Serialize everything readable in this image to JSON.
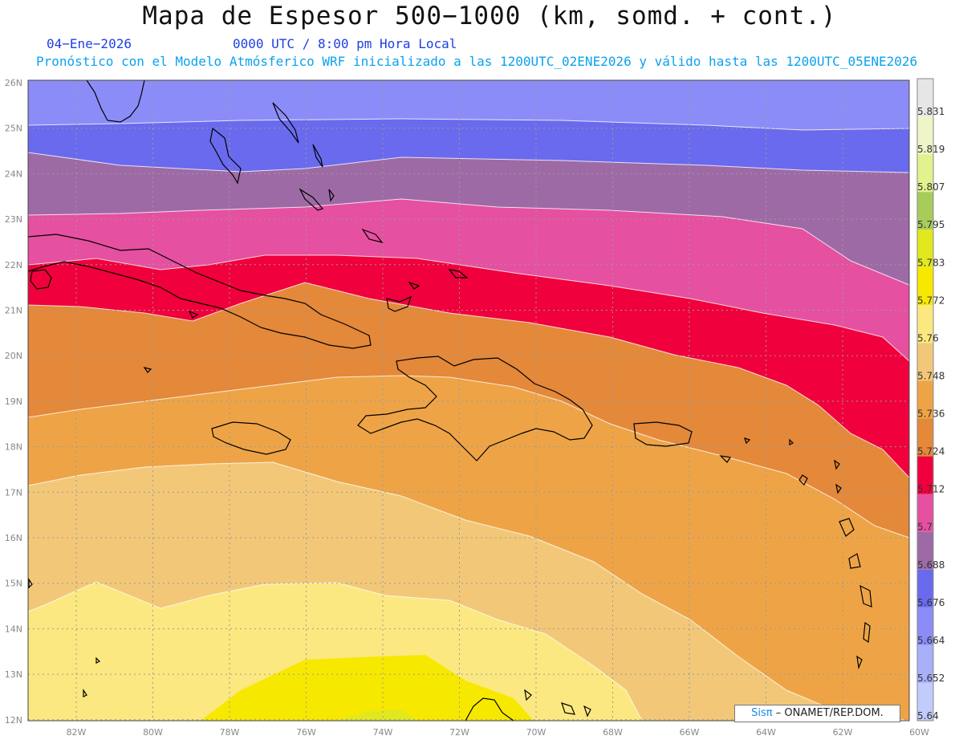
{
  "header": {
    "title": "Mapa de Espesor 500−1000 (km, somd. + cont.)",
    "date": "04−Ene−2026",
    "time": "0000 UTC / 8:00 pm Hora Local",
    "forecast": "Pronóstico con el Modelo Atmósferico WRF inicializado a las 1200UTC_02ENE2026 y válido hasta las  1200UTC_05ENE2026"
  },
  "map": {
    "lon_labels": [
      "82W",
      "80W",
      "78W",
      "76W",
      "74W",
      "72W",
      "70W",
      "68W",
      "66W",
      "64W",
      "62W",
      "60W"
    ],
    "lat_labels": [
      "26N",
      "25N",
      "24N",
      "23N",
      "22N",
      "21N",
      "20N",
      "19N",
      "18N",
      "17N",
      "16N",
      "15N",
      "14N",
      "13N",
      "12N"
    ]
  },
  "colorbar": {
    "labels": [
      "5.831",
      "5.819",
      "5.807",
      "5.795",
      "5.783",
      "5.772",
      "5.76",
      "5.748",
      "5.736",
      "5.724",
      "5.712",
      "5.7",
      "5.688",
      "5.676",
      "5.664",
      "5.652",
      "5.64"
    ],
    "colors": [
      "#e6e6e6",
      "#f0f5c8",
      "#e2f28e",
      "#a8cc5a",
      "#e2e81e",
      "#f7e800",
      "#fbe880",
      "#f2c878",
      "#eea446",
      "#e4883a",
      "#f0003c",
      "#e650a0",
      "#9e6aa6",
      "#6a6aee",
      "#8c8cf8",
      "#a8b0fa",
      "#c2ccfc"
    ]
  },
  "credit": {
    "brand": "Sisπ",
    "text": "– ONAMET/REP.DOM."
  }
}
